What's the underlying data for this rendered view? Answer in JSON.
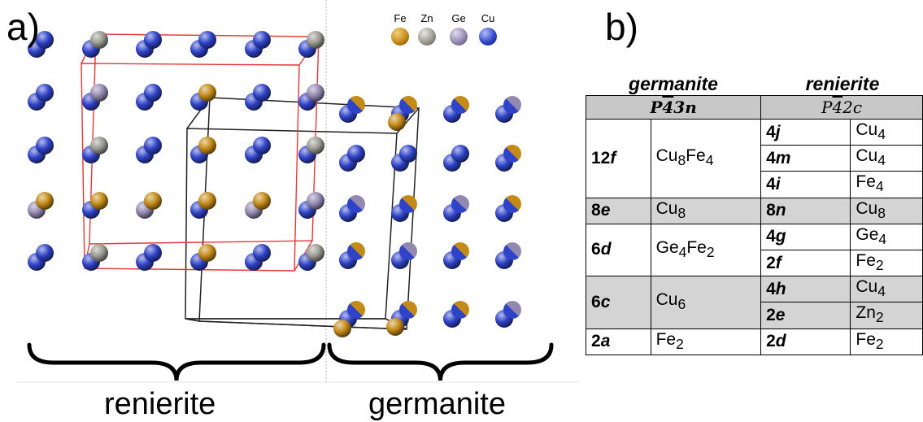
{
  "panel_a": {
    "label": "a)",
    "legend": [
      {
        "element": "Fe",
        "color": "#c48a18"
      },
      {
        "element": "Zn",
        "color": "#9a9a92"
      },
      {
        "element": "Ge",
        "color": "#9388b0"
      },
      {
        "element": "Cu",
        "color": "#2f43c8"
      }
    ],
    "brace_labels": {
      "left": "renierite",
      "right": "germanite"
    },
    "colors": {
      "renierite_cell": "#e8373c",
      "germanite_cell": "#222222",
      "divider": "#b8b8b8"
    }
  },
  "panel_b": {
    "label": "b)",
    "headers": {
      "left": "germanite",
      "right": "renierite"
    },
    "space_groups": {
      "germanite": {
        "prefix": "P",
        "bar": "4",
        "suffix": "3n"
      },
      "renierite": {
        "prefix": "P",
        "bar": "4",
        "suffix": "2c"
      }
    },
    "groups": [
      {
        "germanite_site": {
          "mult": "12",
          "letter": "f"
        },
        "germanite_occ": {
          "base": "Cu",
          "n1": "8",
          "el2": "Fe",
          "n2": "4"
        },
        "grey": false,
        "renierite": [
          {
            "mult": "4",
            "letter": "j",
            "el": "Cu",
            "n": "4"
          },
          {
            "mult": "4",
            "letter": "m",
            "el": "Cu",
            "n": "4"
          },
          {
            "mult": "4",
            "letter": "i",
            "el": "Fe",
            "n": "4"
          }
        ]
      },
      {
        "germanite_site": {
          "mult": "8",
          "letter": "e"
        },
        "germanite_occ": {
          "base": "Cu",
          "n1": "8"
        },
        "grey": true,
        "renierite": [
          {
            "mult": "8",
            "letter": "n",
            "el": "Cu",
            "n": "8"
          }
        ]
      },
      {
        "germanite_site": {
          "mult": "6",
          "letter": "d"
        },
        "germanite_occ": {
          "base": "Ge",
          "n1": "4",
          "el2": "Fe",
          "n2": "2"
        },
        "grey": false,
        "renierite": [
          {
            "mult": "4",
            "letter": "g",
            "el": "Ge",
            "n": "4"
          },
          {
            "mult": "2",
            "letter": "f",
            "el": "Fe",
            "n": "2"
          }
        ]
      },
      {
        "germanite_site": {
          "mult": "6",
          "letter": "c"
        },
        "germanite_occ": {
          "base": "Cu",
          "n1": "6"
        },
        "grey": true,
        "renierite": [
          {
            "mult": "4",
            "letter": "h",
            "el": "Cu",
            "n": "4"
          },
          {
            "mult": "2",
            "letter": "e",
            "el": "Zn",
            "n": "2"
          }
        ]
      },
      {
        "germanite_site": {
          "mult": "2",
          "letter": "a"
        },
        "germanite_occ": {
          "base": "Fe",
          "n1": "2"
        },
        "grey": false,
        "renierite": [
          {
            "mult": "2",
            "letter": "d",
            "el": "Fe",
            "n": "2"
          }
        ]
      }
    ]
  }
}
